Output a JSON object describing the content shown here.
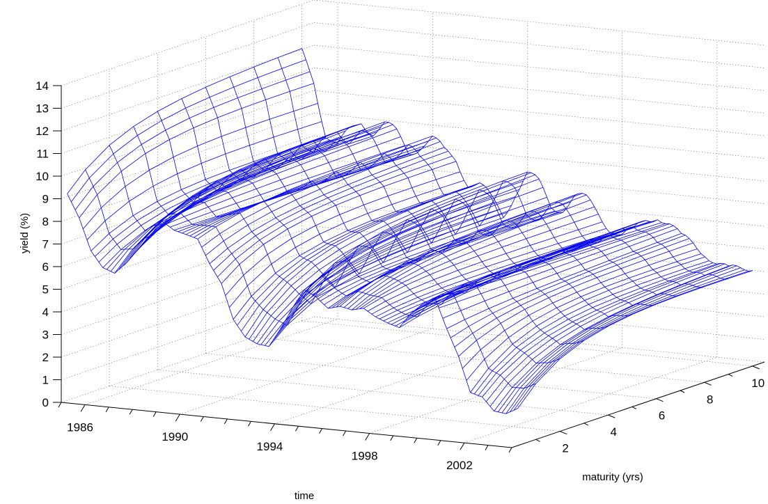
{
  "chart_data": {
    "type": "surface",
    "ylabel": "yield (%)",
    "xlabel": "time",
    "zlabel": "maturity (yrs)",
    "time_ticks": [
      "1986",
      "1990",
      "1994",
      "1998",
      "2002"
    ],
    "maturity_ticks": [
      "2",
      "4",
      "6",
      "8",
      "10"
    ],
    "yield_ticks": [
      "0",
      "1",
      "2",
      "3",
      "4",
      "5",
      "6",
      "7",
      "8",
      "9",
      "10",
      "11",
      "12",
      "13",
      "14"
    ],
    "time_range": [
      1985,
      2004
    ],
    "maturity_range": [
      0,
      10.5
    ],
    "yield_range": [
      0,
      14
    ],
    "grid": true,
    "mesh_color": "#0000ee",
    "maturities": [
      0.25,
      1,
      2,
      3,
      4,
      5,
      6,
      7,
      8,
      9,
      10
    ],
    "short_rate_path": [
      [
        1985.0,
        8.8
      ],
      [
        1985.5,
        7.8
      ],
      [
        1986.0,
        6.5
      ],
      [
        1986.5,
        5.8
      ],
      [
        1987.0,
        5.5
      ],
      [
        1987.5,
        6.0
      ],
      [
        1988.0,
        6.8
      ],
      [
        1988.5,
        7.5
      ],
      [
        1989.0,
        8.3
      ],
      [
        1989.5,
        8.0
      ],
      [
        1990.0,
        7.8
      ],
      [
        1990.5,
        7.6
      ],
      [
        1991.0,
        6.5
      ],
      [
        1991.5,
        5.6
      ],
      [
        1992.0,
        4.0
      ],
      [
        1992.5,
        3.2
      ],
      [
        1993.0,
        3.0
      ],
      [
        1993.5,
        3.0
      ],
      [
        1994.0,
        3.8
      ],
      [
        1994.5,
        4.8
      ],
      [
        1995.0,
        5.8
      ],
      [
        1995.5,
        5.6
      ],
      [
        1996.0,
        5.1
      ],
      [
        1996.5,
        5.2
      ],
      [
        1997.0,
        5.1
      ],
      [
        1997.5,
        5.3
      ],
      [
        1998.0,
        5.0
      ],
      [
        1998.5,
        4.8
      ],
      [
        1999.0,
        4.6
      ],
      [
        1999.5,
        5.3
      ],
      [
        2000.0,
        5.8
      ],
      [
        2000.5,
        6.2
      ],
      [
        2001.0,
        4.8
      ],
      [
        2001.5,
        3.5
      ],
      [
        2002.0,
        1.8
      ],
      [
        2002.5,
        1.7
      ],
      [
        2003.0,
        1.1
      ],
      [
        2003.5,
        1.0
      ],
      [
        2004.0,
        1.3
      ]
    ],
    "long_rate_path": [
      [
        1985.0,
        11.8
      ],
      [
        1985.5,
        10.8
      ],
      [
        1986.0,
        8.5
      ],
      [
        1986.5,
        7.8
      ],
      [
        1987.0,
        8.5
      ],
      [
        1987.5,
        9.2
      ],
      [
        1988.0,
        8.8
      ],
      [
        1988.5,
        9.0
      ],
      [
        1989.0,
        8.6
      ],
      [
        1989.5,
        8.0
      ],
      [
        1990.0,
        8.4
      ],
      [
        1990.5,
        8.6
      ],
      [
        1991.0,
        8.0
      ],
      [
        1991.5,
        7.9
      ],
      [
        1992.0,
        7.0
      ],
      [
        1992.5,
        6.8
      ],
      [
        1993.0,
        6.1
      ],
      [
        1993.5,
        5.6
      ],
      [
        1994.0,
        6.8
      ],
      [
        1994.5,
        7.5
      ],
      [
        1995.0,
        7.0
      ],
      [
        1995.5,
        6.2
      ],
      [
        1996.0,
        6.3
      ],
      [
        1996.5,
        6.7
      ],
      [
        1997.0,
        6.5
      ],
      [
        1997.5,
        6.1
      ],
      [
        1998.0,
        5.6
      ],
      [
        1998.5,
        5.2
      ],
      [
        1999.0,
        5.3
      ],
      [
        1999.5,
        6.0
      ],
      [
        2000.0,
        6.4
      ],
      [
        2000.5,
        5.9
      ],
      [
        2001.0,
        5.2
      ],
      [
        2001.5,
        5.2
      ],
      [
        2002.0,
        5.0
      ],
      [
        2002.5,
        4.4
      ],
      [
        2003.0,
        4.0
      ],
      [
        2003.5,
        4.3
      ],
      [
        2004.0,
        4.6
      ]
    ]
  }
}
